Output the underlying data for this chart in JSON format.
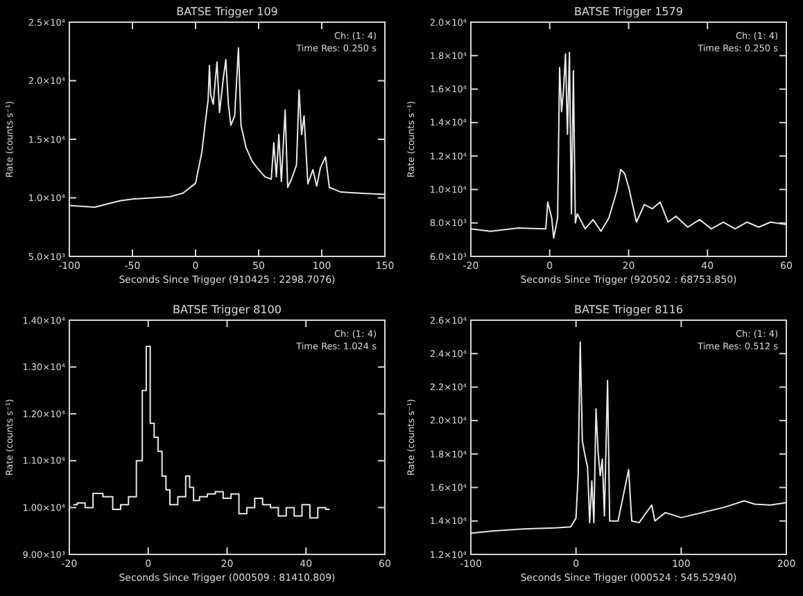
{
  "chart_data": [
    {
      "type": "line",
      "title": "BATSE Trigger 109",
      "xlabel": "Seconds Since Trigger (910425 : 2298.7076)",
      "ylabel": "Rate (counts s⁻¹)",
      "annotations": [
        "Ch: (1: 4)",
        "Time Res: 0.250 s"
      ],
      "color": "#e8e8e8",
      "xlim": [
        -100,
        150
      ],
      "xticks": [
        -100,
        -50,
        0,
        50,
        100,
        150
      ],
      "ylim": [
        5000,
        25000
      ],
      "yticks": [
        {
          "value": 5000,
          "label": "5.0×10³"
        },
        {
          "value": 10000,
          "label": "1.0×10⁴"
        },
        {
          "value": 15000,
          "label": "1.5×10⁴"
        },
        {
          "value": 20000,
          "label": "2.0×10⁴"
        },
        {
          "value": 25000,
          "label": "2.5×10⁴"
        }
      ],
      "x": [
        -100,
        -80,
        -60,
        -50,
        -20,
        -10,
        0,
        5,
        8,
        10,
        11,
        12,
        14,
        17,
        19,
        22,
        24,
        26,
        28,
        31,
        34,
        36,
        40,
        45,
        50,
        55,
        60,
        62,
        64,
        66,
        68,
        71,
        73,
        76,
        80,
        82,
        84,
        86,
        89,
        93,
        96,
        99,
        103,
        106,
        115,
        130,
        150
      ],
      "values": [
        9350,
        9200,
        9750,
        9900,
        10100,
        10400,
        11250,
        13900,
        16700,
        18400,
        21300,
        18800,
        18000,
        21600,
        17300,
        20200,
        21800,
        18000,
        16200,
        17000,
        22800,
        16200,
        14300,
        13100,
        12400,
        11800,
        11600,
        14700,
        11800,
        15400,
        11400,
        17500,
        10900,
        11600,
        12800,
        19200,
        15400,
        17000,
        11200,
        12400,
        11000,
        12600,
        13500,
        10900,
        10500,
        10400,
        10300
      ]
    },
    {
      "type": "line",
      "title": "BATSE Trigger 1579",
      "xlabel": "Seconds Since Trigger (920502 : 68753.850)",
      "ylabel": "Rate (counts s⁻¹)",
      "annotations": [
        "Ch: (1: 4)",
        "Time Res: 0.250 s"
      ],
      "color": "#e8e8e8",
      "xlim": [
        -20,
        60
      ],
      "xticks": [
        -20,
        0,
        20,
        40,
        60
      ],
      "ylim": [
        6000,
        20000
      ],
      "yticks": [
        {
          "value": 6000,
          "label": "6.0×10³"
        },
        {
          "value": 8000,
          "label": "8.0×10³"
        },
        {
          "value": 10000,
          "label": "1.0×10⁴"
        },
        {
          "value": 12000,
          "label": "1.2×10⁴"
        },
        {
          "value": 14000,
          "label": "1.4×10⁴"
        },
        {
          "value": 16000,
          "label": "1.6×10⁴"
        },
        {
          "value": 18000,
          "label": "1.8×10⁴"
        },
        {
          "value": 20000,
          "label": "2.0×10⁴"
        }
      ],
      "x": [
        -20,
        -15,
        -8,
        -1,
        -0.5,
        0.5,
        1,
        2,
        2.5,
        3,
        3.5,
        4,
        4.5,
        5,
        5.5,
        6,
        6.5,
        7,
        9,
        11,
        13,
        15,
        17,
        18,
        19,
        20,
        22,
        24,
        26,
        28,
        30,
        32,
        35,
        38,
        41,
        44,
        47,
        50,
        53,
        56,
        60
      ],
      "values": [
        7650,
        7500,
        7700,
        7650,
        9250,
        8300,
        7100,
        8300,
        17300,
        14650,
        16000,
        18100,
        13300,
        18200,
        8550,
        17100,
        8000,
        8550,
        7650,
        8200,
        7500,
        8300,
        9900,
        11200,
        10950,
        10150,
        8050,
        9100,
        8850,
        9250,
        8050,
        8400,
        7750,
        8200,
        7650,
        8050,
        7650,
        8050,
        7750,
        8050,
        7900
      ]
    },
    {
      "type": "step",
      "title": "BATSE Trigger 8100",
      "xlabel": "Seconds Since Trigger (000509 : 81410.809)",
      "ylabel": "Rate (counts s⁻¹)",
      "annotations": [
        "Ch: (1: 4)",
        "Time Res: 1.024 s"
      ],
      "color": "#e8e8e8",
      "xlim": [
        -20,
        60
      ],
      "xticks": [
        -20,
        0,
        20,
        40,
        60
      ],
      "ylim": [
        9000,
        14000
      ],
      "yticks": [
        {
          "value": 9000,
          "label": "9.00×10³"
        },
        {
          "value": 10000,
          "label": "1.00×10⁴"
        },
        {
          "value": 11000,
          "label": "1.10×10⁴"
        },
        {
          "value": 12000,
          "label": "1.20×10⁴"
        },
        {
          "value": 13000,
          "label": "1.30×10⁴"
        },
        {
          "value": 14000,
          "label": "1.40×10⁴"
        }
      ],
      "x": [
        -19,
        -17,
        -15,
        -13,
        -10,
        -8,
        -6,
        -4,
        -2,
        -1,
        0,
        1,
        2,
        3,
        4,
        5,
        6,
        9,
        10,
        11,
        12,
        14,
        16,
        18,
        20,
        22,
        24,
        26,
        28,
        30,
        32,
        34,
        36,
        38,
        40,
        42,
        44,
        46
      ],
      "values": [
        10060,
        10100,
        10000,
        10300,
        10230,
        9960,
        10060,
        10230,
        11000,
        12500,
        13440,
        11800,
        11500,
        11200,
        10670,
        10380,
        10060,
        10230,
        10670,
        10430,
        10150,
        10230,
        10290,
        10340,
        10200,
        10290,
        9870,
        10000,
        10200,
        10060,
        10000,
        9820,
        10000,
        9820,
        10060,
        9780,
        10000,
        9960
      ]
    },
    {
      "type": "line",
      "title": "BATSE Trigger 8116",
      "xlabel": "Seconds Since Trigger (000524 : 545.52940)",
      "ylabel": "Rate (counts s⁻¹)",
      "annotations": [
        "Ch: (1: 4)",
        "Time Res: 0.512 s"
      ],
      "color": "#e8e8e8",
      "xlim": [
        -100,
        200
      ],
      "xticks": [
        -100,
        0,
        100,
        200
      ],
      "ylim": [
        12000,
        26000
      ],
      "yticks": [
        {
          "value": 12000,
          "label": "1.2×10⁴"
        },
        {
          "value": 14000,
          "label": "1.4×10⁴"
        },
        {
          "value": 16000,
          "label": "1.6×10⁴"
        },
        {
          "value": 18000,
          "label": "1.8×10⁴"
        },
        {
          "value": 20000,
          "label": "2.0×10⁴"
        },
        {
          "value": 22000,
          "label": "2.2×10⁴"
        },
        {
          "value": 24000,
          "label": "2.4×10⁴"
        },
        {
          "value": 26000,
          "label": "2.6×10⁴"
        }
      ],
      "x": [
        -100,
        -80,
        -50,
        -20,
        -5,
        0,
        2,
        4,
        6,
        8,
        11,
        13,
        15,
        17,
        19,
        21,
        23,
        25,
        27,
        30,
        32,
        40,
        50,
        53,
        60,
        72,
        75,
        85,
        100,
        120,
        140,
        160,
        170,
        185,
        200
      ],
      "values": [
        13260,
        13400,
        13520,
        13580,
        13650,
        14180,
        16700,
        24700,
        18800,
        18100,
        17200,
        13900,
        16400,
        13900,
        20700,
        18100,
        16700,
        17700,
        14300,
        22400,
        14000,
        14000,
        17070,
        14000,
        13900,
        14950,
        14000,
        14500,
        14200,
        14500,
        14800,
        15200,
        15000,
        14950,
        15100
      ]
    }
  ]
}
